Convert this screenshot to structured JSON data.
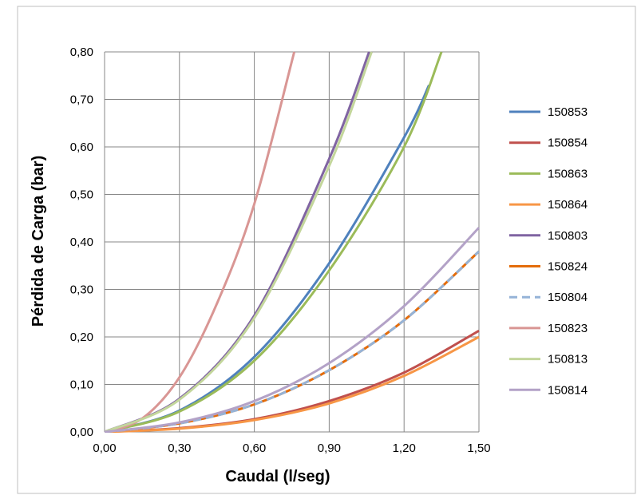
{
  "chart_data": {
    "type": "line",
    "title": "",
    "xlabel": "Caudal (l/seg)",
    "ylabel": "Pérdida de Carga (bar)",
    "xlim": [
      0,
      1.5
    ],
    "ylim": [
      0,
      0.8
    ],
    "x_ticks": [
      "0,00",
      "0,30",
      "0,60",
      "0,90",
      "1,20",
      "1,50"
    ],
    "y_ticks": [
      "0,00",
      "0,10",
      "0,20",
      "0,30",
      "0,40",
      "0,50",
      "0,60",
      "0,70",
      "0,80"
    ],
    "grid": true,
    "legend_position": "right",
    "series": [
      {
        "name": "150853",
        "color": "#4f81bd",
        "dash": false,
        "x": [
          0,
          0.3,
          0.6,
          0.9,
          1.2,
          1.3
        ],
        "y": [
          0,
          0.045,
          0.158,
          0.355,
          0.62,
          0.73
        ]
      },
      {
        "name": "150854",
        "color": "#c0504d",
        "dash": false,
        "x": [
          0,
          0.3,
          0.6,
          0.9,
          1.2,
          1.5
        ],
        "y": [
          0,
          0.008,
          0.027,
          0.065,
          0.125,
          0.213
        ]
      },
      {
        "name": "150863",
        "color": "#9bbb59",
        "dash": false,
        "x": [
          0,
          0.3,
          0.6,
          0.9,
          1.2,
          1.35
        ],
        "y": [
          0,
          0.043,
          0.15,
          0.34,
          0.6,
          0.8
        ]
      },
      {
        "name": "150864",
        "color": "#f79646",
        "dash": false,
        "x": [
          0,
          0.3,
          0.6,
          0.9,
          1.2,
          1.5
        ],
        "y": [
          0,
          0.007,
          0.025,
          0.06,
          0.118,
          0.2
        ]
      },
      {
        "name": "150803",
        "color": "#8064a2",
        "dash": false,
        "x": [
          0,
          0.3,
          0.6,
          0.9,
          1.06
        ],
        "y": [
          0,
          0.07,
          0.245,
          0.575,
          0.8
        ]
      },
      {
        "name": "150824",
        "color": "#e46c0a",
        "dash": false,
        "x": [
          0,
          0.3,
          0.6,
          0.9,
          1.2,
          1.5
        ],
        "y": [
          0,
          0.018,
          0.058,
          0.13,
          0.235,
          0.38
        ]
      },
      {
        "name": "150804",
        "color": "#95b3d7",
        "dash": true,
        "x": [
          0,
          0.3,
          0.6,
          0.9,
          1.2,
          1.5
        ],
        "y": [
          0,
          0.018,
          0.058,
          0.13,
          0.235,
          0.38
        ]
      },
      {
        "name": "150823",
        "color": "#d99694",
        "dash": false,
        "x": [
          0,
          0.15,
          0.3,
          0.45,
          0.6,
          0.76
        ],
        "y": [
          0,
          0.028,
          0.115,
          0.27,
          0.48,
          0.8
        ]
      },
      {
        "name": "150813",
        "color": "#c3d69b",
        "dash": false,
        "x": [
          0,
          0.3,
          0.6,
          0.9,
          1.07
        ],
        "y": [
          0,
          0.068,
          0.24,
          0.56,
          0.8
        ]
      },
      {
        "name": "150814",
        "color": "#b3a2c7",
        "dash": false,
        "x": [
          0,
          0.3,
          0.6,
          0.9,
          1.2,
          1.5
        ],
        "y": [
          0,
          0.02,
          0.065,
          0.145,
          0.265,
          0.43
        ]
      }
    ]
  }
}
